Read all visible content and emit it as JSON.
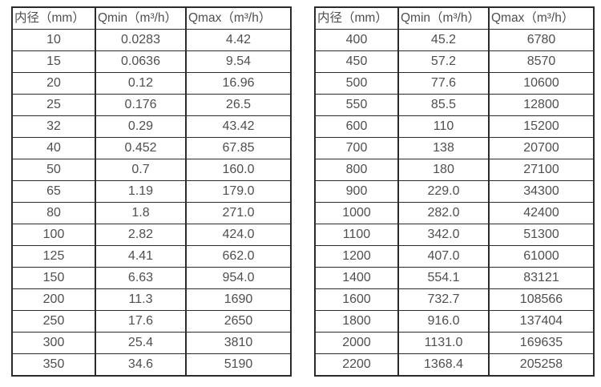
{
  "page": {
    "background_color": "#ffffff",
    "text_color": "#4f4f4f",
    "border_color": "#2b2b2b"
  },
  "column_semantics": [
    "inner-diameter",
    "qmin",
    "qmax"
  ],
  "tables": [
    {
      "id": "flow-table-small-diameters",
      "headers": [
        "内径（mm）",
        "Qmin（m³/h）",
        "Qmax（m³/h）"
      ],
      "rows": [
        [
          "10",
          "0.0283",
          "4.42"
        ],
        [
          "15",
          "0.0636",
          "9.54"
        ],
        [
          "20",
          "0.12",
          "16.96"
        ],
        [
          "25",
          "0.176",
          "26.5"
        ],
        [
          "32",
          "0.29",
          "43.42"
        ],
        [
          "40",
          "0.452",
          "67.85"
        ],
        [
          "50",
          "0.7",
          "160.0"
        ],
        [
          "65",
          "1.19",
          "179.0"
        ],
        [
          "80",
          "1.8",
          "271.0"
        ],
        [
          "100",
          "2.82",
          "424.0"
        ],
        [
          "125",
          "4.41",
          "662.0"
        ],
        [
          "150",
          "6.63",
          "954.0"
        ],
        [
          "200",
          "11.3",
          "1690"
        ],
        [
          "250",
          "17.6",
          "2650"
        ],
        [
          "300",
          "25.4",
          "3810"
        ],
        [
          "350",
          "34.6",
          "5190"
        ]
      ]
    },
    {
      "id": "flow-table-large-diameters",
      "headers": [
        "内径（mm）",
        "Qmin（m³/h）",
        "Qmax（m³/h）"
      ],
      "rows": [
        [
          "400",
          "45.2",
          "6780"
        ],
        [
          "450",
          "57.2",
          "8570"
        ],
        [
          "500",
          "77.6",
          "10600"
        ],
        [
          "550",
          "85.5",
          "12800"
        ],
        [
          "600",
          "110",
          "15200"
        ],
        [
          "700",
          "138",
          "20700"
        ],
        [
          "800",
          "180",
          "27100"
        ],
        [
          "900",
          "229.0",
          "34300"
        ],
        [
          "1000",
          "282.0",
          "42400"
        ],
        [
          "1100",
          "342.0",
          "51300"
        ],
        [
          "1200",
          "407.0",
          "61000"
        ],
        [
          "1400",
          "554.1",
          "83121"
        ],
        [
          "1600",
          "732.7",
          "108566"
        ],
        [
          "1800",
          "916.0",
          "137404"
        ],
        [
          "2000",
          "1131.0",
          "169635"
        ],
        [
          "2200",
          "1368.4",
          "205258"
        ]
      ]
    }
  ]
}
